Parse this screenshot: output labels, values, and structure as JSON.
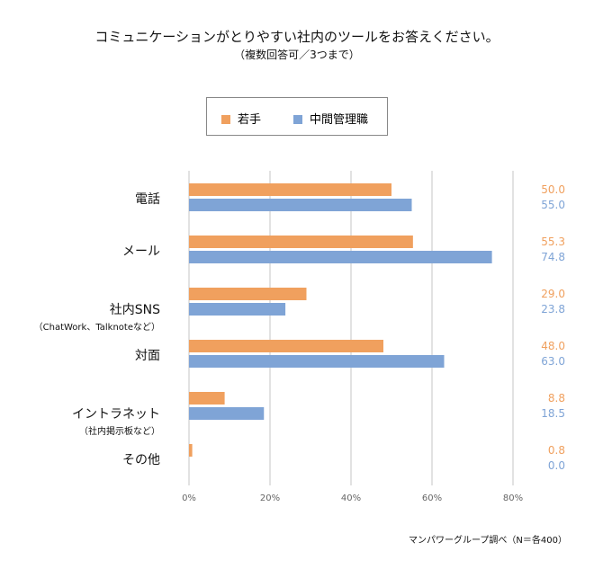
{
  "chart_data": {
    "type": "bar",
    "orientation": "horizontal",
    "title": "コミュニケーションがとりやすい社内のツールをお答えください。",
    "subtitle": "（複数回答可／3つまで）",
    "categories": [
      {
        "label": "電話",
        "sublabel": ""
      },
      {
        "label": "メール",
        "sublabel": ""
      },
      {
        "label": "社内SNS",
        "sublabel": "（ChatWork、Talknoteなど）"
      },
      {
        "label": "対面",
        "sublabel": ""
      },
      {
        "label": "イントラネット",
        "sublabel": "（社内掲示板など）"
      },
      {
        "label": "その他",
        "sublabel": ""
      }
    ],
    "series": [
      {
        "name": "若手",
        "color": "#F0A05E",
        "values": [
          50.0,
          55.3,
          29.0,
          48.0,
          8.8,
          0.8
        ]
      },
      {
        "name": "中間管理職",
        "color": "#7FA4D6",
        "values": [
          55.0,
          74.8,
          23.8,
          63.0,
          18.5,
          0.0
        ]
      }
    ],
    "xlim": [
      0,
      80
    ],
    "xticks": [
      "0%",
      "20%",
      "40%",
      "60%",
      "80%"
    ],
    "grid": true,
    "legend_position": "top",
    "source": "マンパワーグループ調べ（N＝各400）"
  }
}
